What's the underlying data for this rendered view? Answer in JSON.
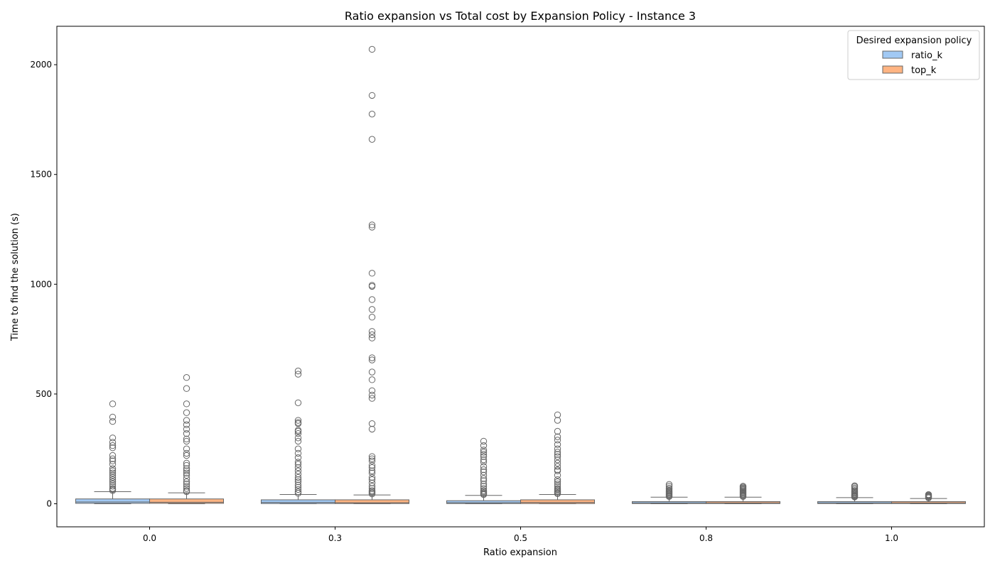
{
  "chart_data": {
    "type": "box",
    "title": "Ratio expansion vs Total cost by Expansion Policy - Instance 3",
    "xlabel": "Ratio expansion",
    "ylabel": "Time to find the solution (s)",
    "categories": [
      "0.0",
      "0.3",
      "0.5",
      "0.8",
      "1.0"
    ],
    "ylim": [
      -105,
      2175
    ],
    "yticks": [
      0,
      500,
      1000,
      1500,
      2000
    ],
    "legend": {
      "title": "Desired expansion policy",
      "position": "top-right",
      "entries": [
        "ratio_k",
        "top_k"
      ]
    },
    "series": [
      {
        "name": "ratio_k",
        "color": "#a1c9f4",
        "boxes": [
          {
            "whislo": 0,
            "q1": 2,
            "med": 8,
            "q3": 22,
            "whishi": 55,
            "fliers": [
              60,
              65,
              70,
              80,
              90,
              100,
              110,
              120,
              130,
              140,
              150,
              160,
              180,
              195,
              205,
              220,
              255,
              265,
              280,
              300,
              375,
              395,
              455
            ]
          },
          {
            "whislo": 0,
            "q1": 1,
            "med": 6,
            "q3": 18,
            "whishi": 42,
            "fliers": [
              48,
              55,
              65,
              75,
              85,
              100,
              110,
              120,
              135,
              150,
              165,
              180,
              190,
              210,
              230,
              250,
              285,
              300,
              320,
              330,
              335,
              365,
              370,
              380,
              460,
              590,
              605
            ]
          },
          {
            "whislo": 0,
            "q1": 1,
            "med": 5,
            "q3": 14,
            "whishi": 38,
            "fliers": [
              42,
              46,
              50,
              55,
              60,
              70,
              80,
              90,
              105,
              115,
              130,
              145,
              155,
              170,
              190,
              200,
              215,
              225,
              235,
              245,
              265,
              285
            ]
          },
          {
            "whislo": 0,
            "q1": 1,
            "med": 4,
            "q3": 10,
            "whishi": 30,
            "fliers": [
              33,
              36,
              40,
              44,
              48,
              52,
              56,
              60,
              66,
              72,
              80,
              88
            ]
          },
          {
            "whislo": 0,
            "q1": 1,
            "med": 4,
            "q3": 10,
            "whishi": 28,
            "fliers": [
              31,
              34,
              37,
              40,
              44,
              48,
              52,
              56,
              60,
              66,
              72,
              78,
              82
            ]
          }
        ]
      },
      {
        "name": "top_k",
        "color": "#ffb482",
        "boxes": [
          {
            "whislo": 0,
            "q1": 2,
            "med": 7,
            "q3": 22,
            "whishi": 50,
            "fliers": [
              55,
              60,
              70,
              80,
              90,
              100,
              115,
              130,
              140,
              150,
              160,
              175,
              185,
              220,
              230,
              250,
              285,
              295,
              320,
              340,
              360,
              380,
              415,
              455,
              525,
              575
            ]
          },
          {
            "whislo": 0,
            "q1": 1,
            "med": 5,
            "q3": 18,
            "whishi": 40,
            "fliers": [
              45,
              50,
              55,
              60,
              70,
              80,
              95,
              110,
              120,
              140,
              150,
              165,
              175,
              195,
              205,
              215,
              340,
              365,
              480,
              495,
              515,
              565,
              600,
              655,
              665,
              755,
              770,
              785,
              850,
              885,
              930,
              990,
              995,
              1050,
              1260,
              1270,
              1660,
              1775,
              1860,
              2070
            ]
          },
          {
            "whislo": 0,
            "q1": 1,
            "med": 6,
            "q3": 18,
            "whishi": 42,
            "fliers": [
              46,
              50,
              55,
              60,
              65,
              70,
              80,
              90,
              100,
              110,
              130,
              150,
              155,
              170,
              185,
              200,
              215,
              225,
              235,
              250,
              270,
              290,
              305,
              330,
              380,
              405
            ]
          },
          {
            "whislo": 0,
            "q1": 1,
            "med": 4,
            "q3": 10,
            "whishi": 30,
            "fliers": [
              33,
              36,
              40,
              44,
              48,
              52,
              56,
              60,
              64,
              68,
              72,
              76,
              80
            ]
          },
          {
            "whislo": 0,
            "q1": 1,
            "med": 4,
            "q3": 10,
            "whishi": 24,
            "fliers": [
              27,
              30,
              33,
              36,
              39,
              42
            ]
          }
        ]
      }
    ]
  }
}
